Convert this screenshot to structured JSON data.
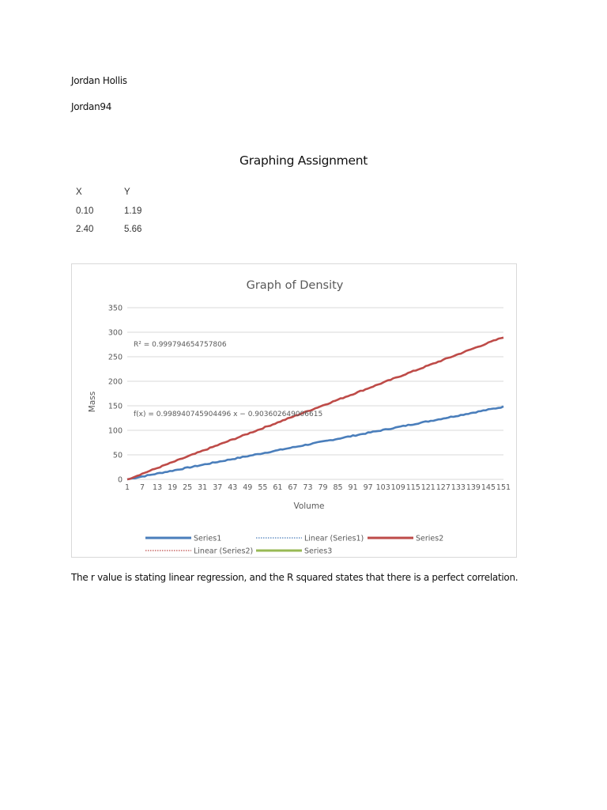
{
  "document": {
    "author_name": "Jordan Hollis",
    "username": "Jordan94",
    "title": "Graphing Assignment",
    "data_table": {
      "headers": [
        "X",
        "Y"
      ],
      "rows": [
        [
          "0.10",
          "1.19"
        ],
        [
          "2.40",
          "5.66"
        ]
      ]
    },
    "conclusion": "The r value is stating linear regression, and the R squared states that there is a perfect correlation."
  },
  "chart_data": {
    "type": "line",
    "title": "Graph of Density",
    "xlabel": "Volume",
    "ylabel": "Mass",
    "ylim": [
      0,
      350
    ],
    "yticks": [
      0,
      50,
      100,
      150,
      200,
      250,
      300,
      350
    ],
    "xticks": [
      1,
      7,
      13,
      19,
      25,
      31,
      37,
      43,
      49,
      55,
      61,
      67,
      73,
      79,
      85,
      91,
      97,
      103,
      109,
      115,
      121,
      127,
      133,
      139,
      145,
      151
    ],
    "x_range": [
      1,
      151
    ],
    "grid": true,
    "legend_position": "bottom",
    "annotations": {
      "r_squared": "R² = 0.999794654757806",
      "equation": "f(x) = 0.998940745904496 x − 0.903602649006615"
    },
    "series": [
      {
        "name": "Series1",
        "color": "#4a7ebb",
        "style": "solid",
        "approx_start": 0,
        "approx_end": 148,
        "approx_slope": 0.99
      },
      {
        "name": "Linear (Series1)",
        "color": "#4a7ebb",
        "style": "dotted",
        "trendline_of": "Series1"
      },
      {
        "name": "Series2",
        "color": "#be4b48",
        "style": "solid",
        "approx_start": 0,
        "approx_end": 290,
        "approx_slope": 1.93
      },
      {
        "name": "Linear (Series2)",
        "color": "#be4b48",
        "style": "dotted",
        "trendline_of": "Series2"
      },
      {
        "name": "Series3",
        "color": "#98b954",
        "style": "solid"
      }
    ]
  }
}
